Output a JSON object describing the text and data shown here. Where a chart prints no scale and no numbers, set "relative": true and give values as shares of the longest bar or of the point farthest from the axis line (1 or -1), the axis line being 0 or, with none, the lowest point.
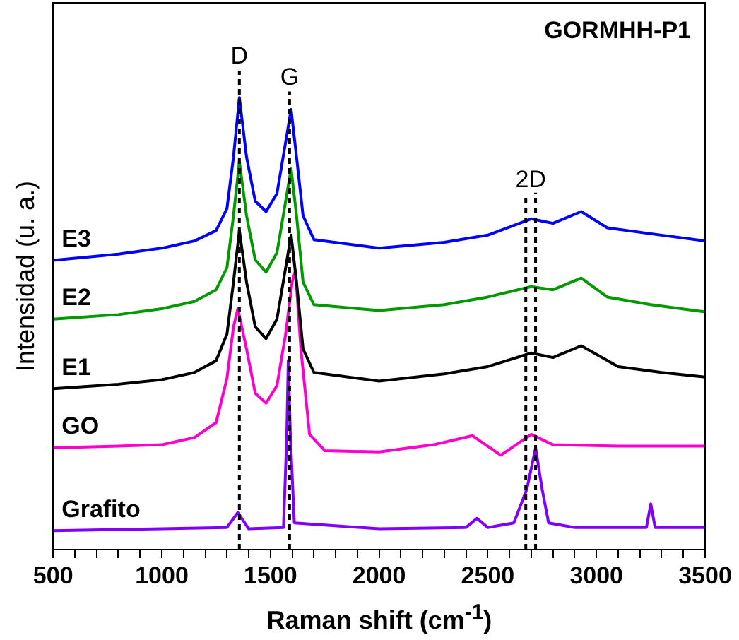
{
  "chart_data": {
    "type": "line",
    "title": "GORMHH-P1",
    "xlabel": "Raman shift (cm$^{-1}$)",
    "ylabel": "Intensidad (u. a.)",
    "relative": true,
    "legend": false,
    "grid": false,
    "line_style": "solid",
    "marker": "none",
    "xlim": [
      500,
      3500
    ],
    "xticks": [
      500,
      {
        "value": 600,
        "label": null
      },
      {
        "value": 700,
        "label": null
      },
      {
        "value": 800,
        "label": null
      },
      {
        "value": 900,
        "label": null
      },
      1000,
      {
        "value": 1100,
        "label": null
      },
      {
        "value": 1200,
        "label": null
      },
      {
        "value": 1300,
        "label": null
      },
      {
        "value": 1400,
        "label": null
      },
      1500,
      {
        "value": 1600,
        "label": null
      },
      {
        "value": 1700,
        "label": null
      },
      {
        "value": 1800,
        "label": null
      },
      {
        "value": 1900,
        "label": null
      },
      2000,
      {
        "value": 2100,
        "label": null
      },
      {
        "value": 2200,
        "label": null
      },
      {
        "value": 2300,
        "label": null
      },
      {
        "value": 2400,
        "label": null
      },
      2500,
      {
        "value": 2600,
        "label": null
      },
      {
        "value": 2700,
        "label": null
      },
      {
        "value": 2800,
        "label": null
      },
      {
        "value": 2900,
        "label": null
      },
      3000,
      {
        "value": 3100,
        "label": null
      },
      {
        "value": 3200,
        "label": null
      },
      {
        "value": 3300,
        "label": null
      },
      {
        "value": 3400,
        "label": null
      },
      3500
    ],
    "series": [
      {
        "name": "E3",
        "color": "#0000ff",
        "x": [
          500,
          800,
          1000,
          1150,
          1250,
          1300,
          1330,
          1357,
          1390,
          1430,
          1480,
          1530,
          1570,
          1595,
          1620,
          1650,
          1700,
          2000,
          2300,
          2500,
          2700,
          2800,
          2930,
          3050,
          3250,
          3500
        ],
        "values": [
          0.64,
          0.654,
          0.667,
          0.683,
          0.706,
          0.755,
          0.869,
          1,
          0.869,
          0.771,
          0.748,
          0.788,
          0.902,
          0.974,
          0.869,
          0.739,
          0.686,
          0.667,
          0.68,
          0.696,
          0.732,
          0.722,
          0.748,
          0.712,
          0.699,
          0.683
        ]
      },
      {
        "name": "E2",
        "color": "#009900",
        "x": [
          500,
          800,
          1000,
          1150,
          1250,
          1300,
          1330,
          1357,
          1390,
          1430,
          1480,
          1530,
          1570,
          1595,
          1620,
          1650,
          1700,
          2000,
          2300,
          2500,
          2700,
          2800,
          2930,
          3050,
          3250,
          3500
        ],
        "values": [
          0.51,
          0.52,
          0.533,
          0.549,
          0.575,
          0.624,
          0.739,
          0.859,
          0.739,
          0.641,
          0.614,
          0.657,
          0.771,
          0.843,
          0.739,
          0.592,
          0.542,
          0.529,
          0.542,
          0.559,
          0.582,
          0.575,
          0.601,
          0.559,
          0.542,
          0.526
        ]
      },
      {
        "name": "E1",
        "color": "#000000",
        "x": [
          500,
          800,
          1000,
          1150,
          1250,
          1300,
          1330,
          1357,
          1390,
          1430,
          1480,
          1530,
          1570,
          1595,
          1620,
          1650,
          1700,
          2000,
          2300,
          2500,
          2700,
          2800,
          2930,
          3100,
          3300,
          3500
        ],
        "values": [
          0.356,
          0.366,
          0.376,
          0.392,
          0.418,
          0.477,
          0.592,
          0.706,
          0.592,
          0.493,
          0.467,
          0.51,
          0.624,
          0.696,
          0.592,
          0.444,
          0.392,
          0.373,
          0.389,
          0.405,
          0.435,
          0.425,
          0.451,
          0.405,
          0.392,
          0.382
        ]
      },
      {
        "name": "GO",
        "color": "#ff00cc",
        "x": [
          500,
          800,
          1000,
          1150,
          1250,
          1300,
          1330,
          1350,
          1390,
          1430,
          1480,
          1530,
          1570,
          1600,
          1615,
          1640,
          1680,
          1750,
          2000,
          2250,
          2430,
          2560,
          2700,
          2800,
          3100,
          3500
        ],
        "values": [
          0.225,
          0.229,
          0.232,
          0.248,
          0.281,
          0.379,
          0.493,
          0.533,
          0.444,
          0.346,
          0.324,
          0.363,
          0.477,
          0.592,
          0.618,
          0.444,
          0.255,
          0.219,
          0.216,
          0.232,
          0.252,
          0.209,
          0.255,
          0.232,
          0.229,
          0.229
        ]
      },
      {
        "name": "Grafito",
        "color": "#8000ff",
        "x": [
          500,
          1000,
          1300,
          1350,
          1400,
          1560,
          1575,
          1582,
          1592,
          1610,
          2000,
          2400,
          2450,
          2500,
          2620,
          2680,
          2720,
          2750,
          2780,
          2900,
          3230,
          3250,
          3270,
          3500
        ],
        "values": [
          0.042,
          0.046,
          0.049,
          0.082,
          0.046,
          0.049,
          0.248,
          0.418,
          0.248,
          0.059,
          0.046,
          0.049,
          0.069,
          0.049,
          0.059,
          0.134,
          0.225,
          0.134,
          0.059,
          0.049,
          0.049,
          0.101,
          0.049,
          0.049
        ]
      }
    ],
    "ref_lines": [
      {
        "axis": "x",
        "value": 1357,
        "label": "D",
        "line_style": "dashed",
        "color": "#000000"
      },
      {
        "axis": "x",
        "value": 1588,
        "label": "G",
        "line_style": "dashed",
        "color": "#000000"
      },
      {
        "axis": "x",
        "value": 2675,
        "label": "2D",
        "line_style": "dashed",
        "color": "#000000"
      },
      {
        "axis": "x",
        "value": 2720,
        "label": null,
        "line_style": "dashed",
        "color": "#000000"
      }
    ]
  }
}
